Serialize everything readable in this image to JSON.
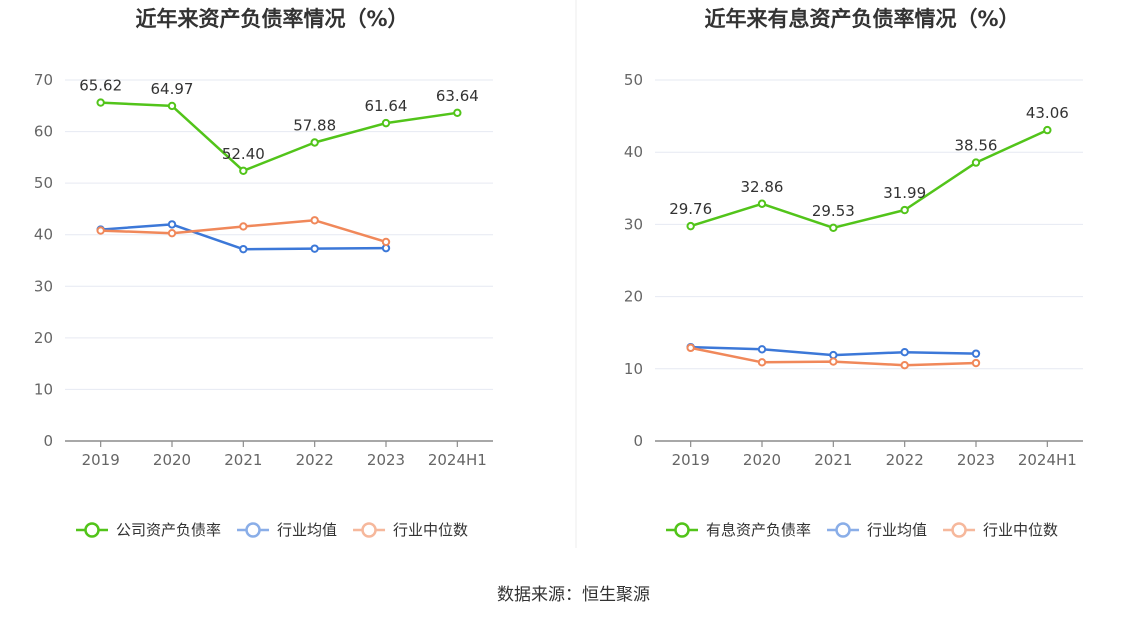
{
  "source_text": "数据来源：恒生聚源",
  "chart_data": [
    {
      "type": "line",
      "title": "近年来资产负债率情况（%）",
      "categories": [
        "2019",
        "2020",
        "2021",
        "2022",
        "2023",
        "2024H1"
      ],
      "ylim": [
        0,
        70
      ],
      "yticks": [
        0,
        10,
        20,
        30,
        40,
        50,
        60,
        70
      ],
      "grid": true,
      "legend_position": "bottom",
      "series": [
        {
          "name": "公司资产负债率",
          "color": "#52c41a",
          "values": [
            65.62,
            64.97,
            52.4,
            57.88,
            61.64,
            63.64
          ],
          "labels": [
            "65.62",
            "64.97",
            "52.40",
            "57.88",
            "61.64",
            "63.64"
          ],
          "show_labels": true
        },
        {
          "name": "行业均值",
          "color": "#3c78d8",
          "values": [
            41.0,
            42.0,
            37.2,
            37.3,
            37.4,
            null
          ],
          "show_labels": false
        },
        {
          "name": "行业中位数",
          "color": "#f0885a",
          "values": [
            40.8,
            40.3,
            41.6,
            42.8,
            38.6,
            null
          ],
          "show_labels": false
        }
      ]
    },
    {
      "type": "line",
      "title": "近年来有息资产负债率情况（%）",
      "categories": [
        "2019",
        "2020",
        "2021",
        "2022",
        "2023",
        "2024H1"
      ],
      "ylim": [
        0,
        50
      ],
      "yticks": [
        0,
        10,
        20,
        30,
        40,
        50
      ],
      "grid": true,
      "legend_position": "bottom",
      "series": [
        {
          "name": "有息资产负债率",
          "color": "#52c41a",
          "values": [
            29.76,
            32.86,
            29.53,
            31.99,
            38.56,
            43.06
          ],
          "labels": [
            "29.76",
            "32.86",
            "29.53",
            "31.99",
            "38.56",
            "43.06"
          ],
          "show_labels": true
        },
        {
          "name": "行业均值",
          "color": "#3c78d8",
          "values": [
            13.0,
            12.7,
            11.9,
            12.3,
            12.1,
            null
          ],
          "show_labels": false
        },
        {
          "name": "行业中位数",
          "color": "#f0885a",
          "values": [
            12.9,
            10.9,
            11.0,
            10.5,
            10.8,
            null
          ],
          "show_labels": false
        }
      ]
    }
  ]
}
